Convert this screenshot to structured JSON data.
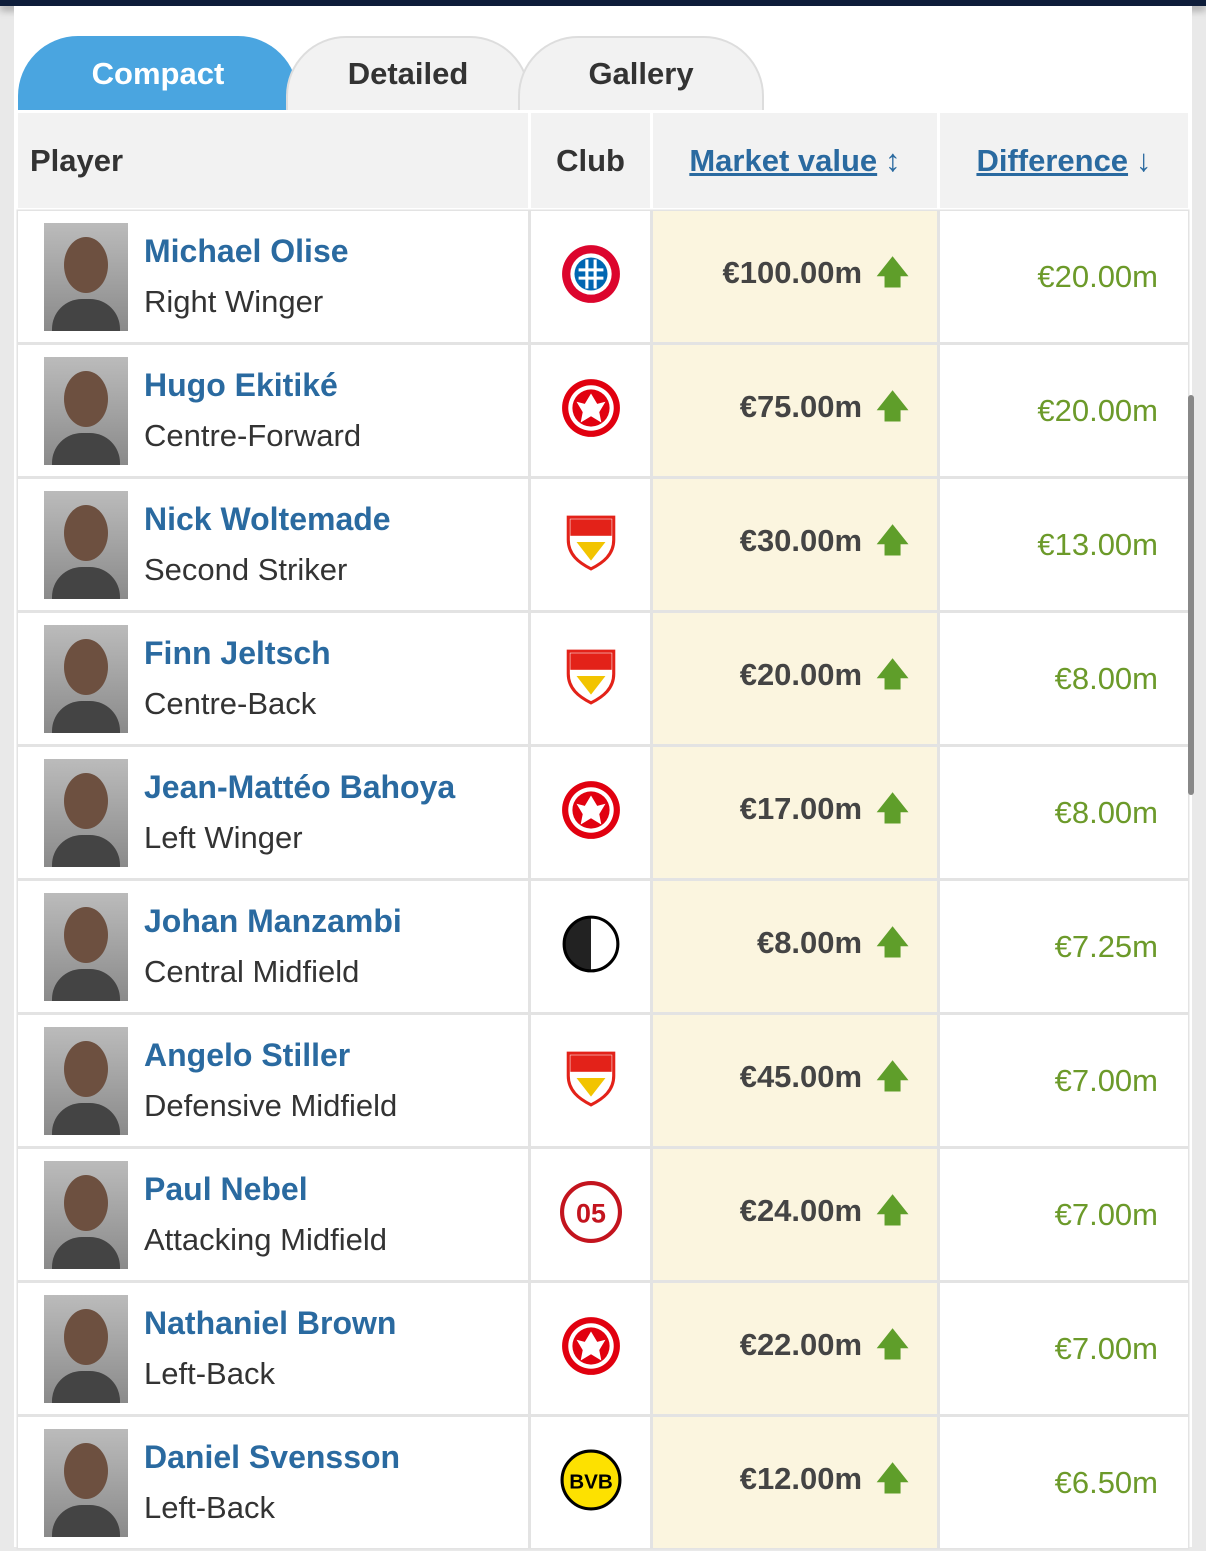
{
  "tabs": [
    {
      "label": "Compact",
      "active": true
    },
    {
      "label": "Detailed",
      "active": false
    },
    {
      "label": "Gallery",
      "active": false
    }
  ],
  "headers": {
    "player": "Player",
    "club": "Club",
    "market_value": "Market value",
    "market_value_sort": "↕",
    "difference": "Difference",
    "difference_sort": "↓"
  },
  "colors": {
    "accent": "#4aa5e0",
    "link": "#2a6aa0",
    "positive": "#6c9a2a",
    "highlight": "#fbf5df"
  },
  "rows": [
    {
      "name": "Michael Olise",
      "position": "Right Winger",
      "club": "bayern-logo",
      "market_value": "€100.00m",
      "trend": "up",
      "difference": "€20.00m"
    },
    {
      "name": "Hugo Ekitiké",
      "position": "Centre-Forward",
      "club": "frankfurt-logo",
      "market_value": "€75.00m",
      "trend": "up",
      "difference": "€20.00m"
    },
    {
      "name": "Nick Woltemade",
      "position": "Second Striker",
      "club": "stuttgart-logo",
      "market_value": "€30.00m",
      "trend": "up",
      "difference": "€13.00m"
    },
    {
      "name": "Finn Jeltsch",
      "position": "Centre-Back",
      "club": "stuttgart-logo",
      "market_value": "€20.00m",
      "trend": "up",
      "difference": "€8.00m"
    },
    {
      "name": "Jean-Mattéo Bahoya",
      "position": "Left Winger",
      "club": "frankfurt-logo",
      "market_value": "€17.00m",
      "trend": "up",
      "difference": "€8.00m"
    },
    {
      "name": "Johan Manzambi",
      "position": "Central Midfield",
      "club": "freiburg-logo",
      "market_value": "€8.00m",
      "trend": "up",
      "difference": "€7.25m"
    },
    {
      "name": "Angelo Stiller",
      "position": "Defensive Midfield",
      "club": "stuttgart-logo",
      "market_value": "€45.00m",
      "trend": "up",
      "difference": "€7.00m"
    },
    {
      "name": "Paul Nebel",
      "position": "Attacking Midfield",
      "club": "mainz-logo",
      "market_value": "€24.00m",
      "trend": "up",
      "difference": "€7.00m"
    },
    {
      "name": "Nathaniel Brown",
      "position": "Left-Back",
      "club": "frankfurt-logo",
      "market_value": "€22.00m",
      "trend": "up",
      "difference": "€7.00m"
    },
    {
      "name": "Daniel Svensson",
      "position": "Left-Back",
      "club": "dortmund-logo",
      "market_value": "€12.00m",
      "trend": "up",
      "difference": "€6.50m"
    }
  ]
}
